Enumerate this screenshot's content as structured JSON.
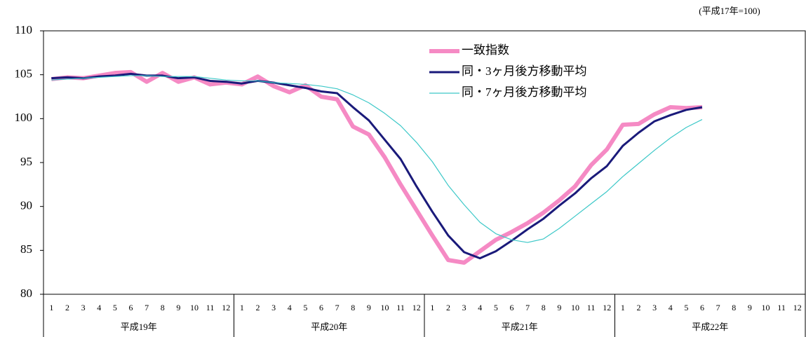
{
  "chart_data": {
    "type": "line",
    "unit_note": "(平成17年=100)",
    "categories": [
      "1",
      "2",
      "3",
      "4",
      "5",
      "6",
      "7",
      "8",
      "9",
      "10",
      "11",
      "12",
      "1",
      "2",
      "3",
      "4",
      "5",
      "6",
      "7",
      "8",
      "9",
      "10",
      "11",
      "12",
      "1",
      "2",
      "3",
      "4",
      "5",
      "6",
      "7",
      "8",
      "9",
      "10",
      "11",
      "12",
      "1",
      "2",
      "3",
      "4",
      "5",
      "6",
      "7",
      "8",
      "9",
      "10",
      "11",
      "12"
    ],
    "groups": [
      "平成19年",
      "平成20年",
      "平成21年",
      "平成22年"
    ],
    "ylim": [
      80,
      110
    ],
    "yticks": [
      80,
      85,
      90,
      95,
      100,
      105,
      110
    ],
    "series": [
      {
        "name": "一致指数",
        "color": "#f58ac4",
        "values": [
          104.5,
          104.7,
          104.6,
          104.9,
          105.2,
          105.3,
          104.2,
          105.2,
          104.2,
          104.7,
          103.9,
          104.1,
          103.9,
          104.8,
          103.7,
          103.0,
          103.8,
          102.5,
          102.2,
          99.1,
          98.2,
          95.6,
          92.5,
          89.6,
          86.7,
          83.9,
          83.6,
          84.9,
          86.2,
          87.1,
          88.1,
          89.3,
          90.7,
          92.3,
          94.7,
          96.5,
          99.3,
          99.4,
          100.5,
          101.3,
          101.2,
          101.3,
          null,
          null,
          null,
          null,
          null,
          null
        ]
      },
      {
        "name": "同・3ヶ月後方移動平均",
        "color": "#1a1a7a",
        "values": [
          104.6,
          104.7,
          104.6,
          104.8,
          104.9,
          105.1,
          104.9,
          104.9,
          104.6,
          104.7,
          104.3,
          104.2,
          104.0,
          104.3,
          104.1,
          103.8,
          103.5,
          103.1,
          102.9,
          101.3,
          99.8,
          97.6,
          95.4,
          92.3,
          89.4,
          86.7,
          84.8,
          84.1,
          84.9,
          86.1,
          87.4,
          88.6,
          90.1,
          91.5,
          93.2,
          94.6,
          96.9,
          98.4,
          99.7,
          100.4,
          101.0,
          101.3,
          null,
          null,
          null,
          null,
          null,
          null
        ]
      },
      {
        "name": "同・7ヶ月後方移動平均",
        "color": "#3cc8c8",
        "values": [
          104.4,
          104.5,
          104.6,
          104.7,
          104.8,
          104.9,
          104.9,
          104.8,
          104.8,
          104.8,
          104.6,
          104.4,
          104.3,
          104.3,
          104.1,
          104.0,
          103.9,
          103.7,
          103.4,
          102.7,
          101.8,
          100.6,
          99.2,
          97.3,
          95.1,
          92.4,
          90.2,
          88.2,
          86.9,
          86.2,
          85.9,
          86.3,
          87.5,
          88.9,
          90.3,
          91.7,
          93.4,
          94.9,
          96.4,
          97.8,
          99.0,
          99.9,
          null,
          null,
          null,
          null,
          null,
          null
        ]
      }
    ]
  }
}
